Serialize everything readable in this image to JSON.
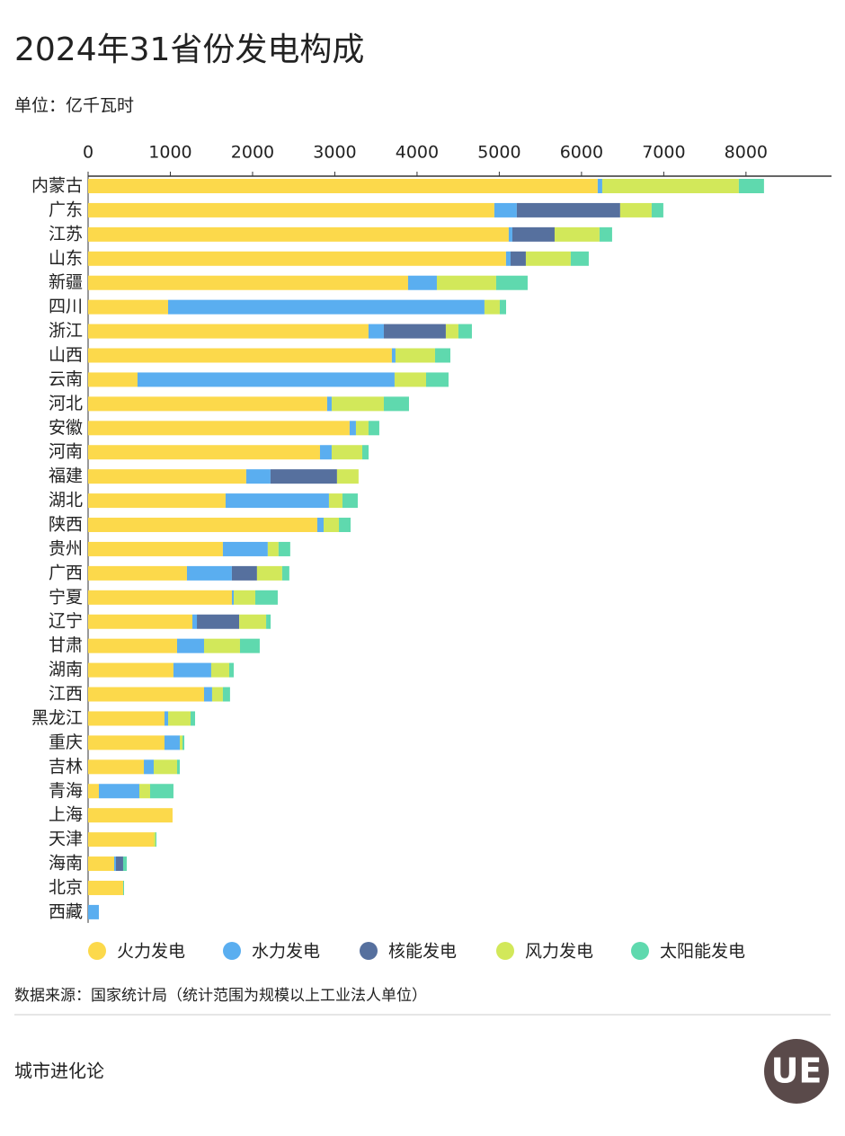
{
  "chart_data": {
    "type": "stacked-bar-horizontal",
    "title": "2024年31省份发电构成",
    "subtitle": "单位：亿千瓦时",
    "source": "数据来源：国家统计局（统计范围为规模以上工业法人单位）",
    "footer": "城市进化论",
    "logo": "UE",
    "xlim": [
      0,
      9040
    ],
    "xticks": [
      0,
      1000,
      2000,
      3000,
      4000,
      5000,
      6000,
      7000,
      8000
    ],
    "grid": false,
    "legend": "bottom",
    "categories": [
      "内蒙古",
      "广东",
      "江苏",
      "山东",
      "新疆",
      "四川",
      "浙江",
      "山西",
      "云南",
      "河北",
      "安徽",
      "河南",
      "福建",
      "湖北",
      "陕西",
      "贵州",
      "广西",
      "宁夏",
      "辽宁",
      "甘肃",
      "湖南",
      "江西",
      "黑龙江",
      "重庆",
      "吉林",
      "青海",
      "上海",
      "天津",
      "海南",
      "北京",
      "西藏"
    ],
    "series": [
      {
        "name": "火力发电",
        "color": "#fcd94b",
        "values": [
          6197,
          4940,
          5115,
          5082,
          3891,
          973,
          3410,
          3694,
          601,
          2907,
          3180,
          2820,
          1923,
          1672,
          2787,
          1639,
          1202,
          1749,
          1268,
          1082,
          1038,
          1410,
          929,
          929,
          678,
          131,
          1027,
          798,
          317,
          426,
          0
        ]
      },
      {
        "name": "水力发电",
        "color": "#5aaef0",
        "values": [
          55,
          273,
          44,
          55,
          350,
          3847,
          186,
          44,
          3126,
          55,
          77,
          142,
          295,
          1257,
          77,
          546,
          546,
          22,
          55,
          328,
          459,
          98,
          44,
          186,
          120,
          492,
          0,
          0,
          22,
          0,
          131
        ]
      },
      {
        "name": "核能发电",
        "color": "#56709e",
        "values": [
          0,
          1257,
          514,
          186,
          0,
          0,
          754,
          0,
          0,
          0,
          0,
          0,
          809,
          0,
          0,
          0,
          306,
          0,
          514,
          0,
          0,
          0,
          0,
          0,
          0,
          0,
          0,
          0,
          87,
          0,
          0
        ]
      },
      {
        "name": "风力发电",
        "color": "#d2e85a",
        "values": [
          1661,
          383,
          546,
          546,
          721,
          186,
          153,
          481,
          383,
          634,
          153,
          372,
          262,
          164,
          186,
          131,
          306,
          262,
          328,
          437,
          219,
          131,
          273,
          33,
          284,
          131,
          0,
          22,
          0,
          0,
          0
        ]
      },
      {
        "name": "太阳能发电",
        "color": "#5fd9ae",
        "values": [
          306,
          142,
          153,
          219,
          383,
          77,
          164,
          186,
          273,
          306,
          131,
          77,
          0,
          186,
          142,
          142,
          87,
          273,
          55,
          240,
          55,
          87,
          55,
          22,
          33,
          284,
          0,
          11,
          44,
          11,
          0
        ]
      }
    ]
  }
}
